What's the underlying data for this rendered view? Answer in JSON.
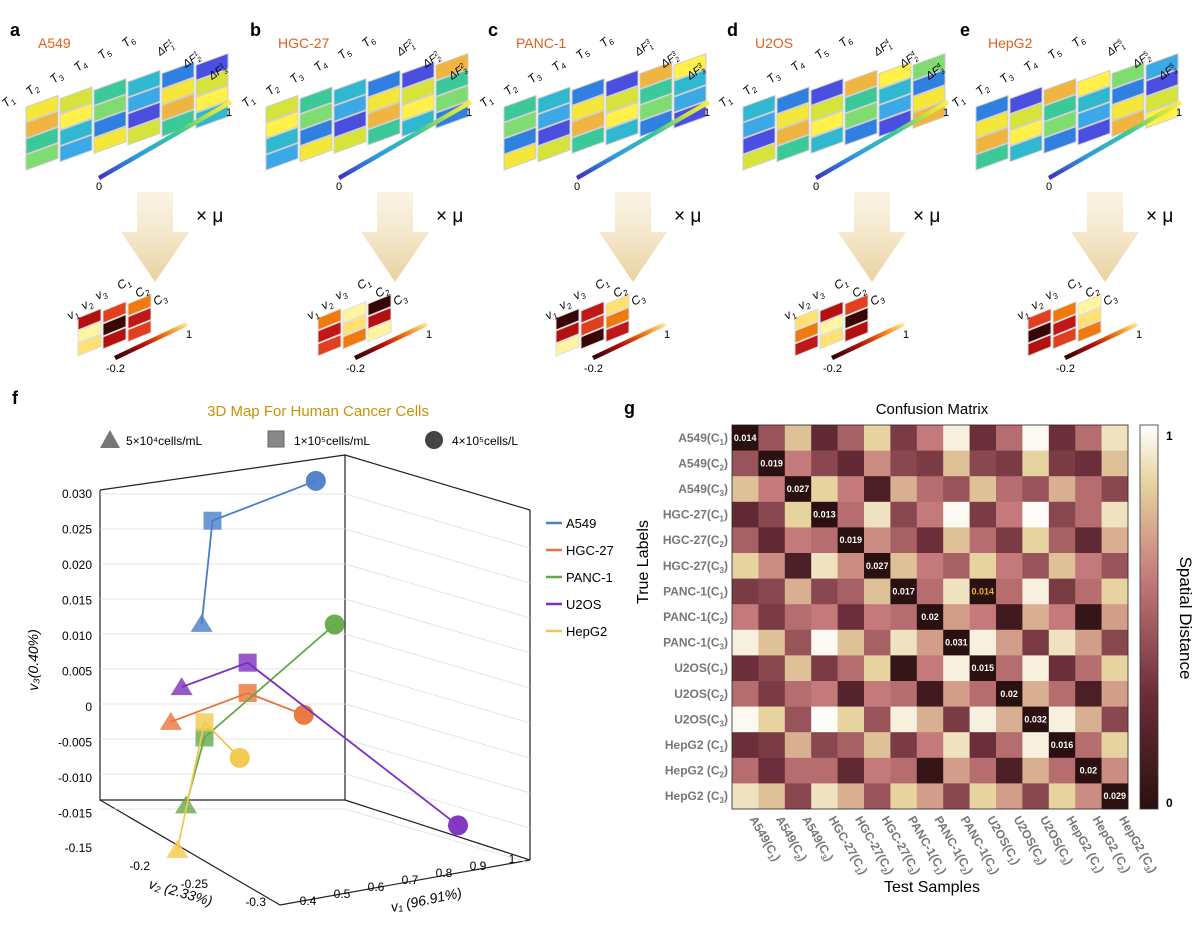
{
  "panels_top": [
    {
      "letter": "a",
      "cell_line": "A549",
      "row_labels": [
        "T1",
        "T2",
        "T3",
        "T4",
        "T5",
        "T6"
      ],
      "col_labels": [
        "ΔF1",
        "ΔF1",
        "ΔF1"
      ],
      "col_sup": "1"
    },
    {
      "letter": "b",
      "cell_line": "HGC-27",
      "row_labels": [
        "T1",
        "T2",
        "T3",
        "T4",
        "T5",
        "T6"
      ],
      "col_labels": [
        "ΔF2",
        "ΔF2",
        "ΔF2"
      ],
      "col_sup": "2"
    },
    {
      "letter": "c",
      "cell_line": "PANC-1",
      "row_labels": [
        "T1",
        "T2",
        "T3",
        "T4",
        "T5",
        "T6"
      ],
      "col_labels": [
        "ΔF3",
        "ΔF3",
        "ΔF3"
      ],
      "col_sup": "3"
    },
    {
      "letter": "d",
      "cell_line": "U2OS",
      "row_labels": [
        "T1",
        "T2",
        "T3",
        "T4",
        "T5",
        "T6"
      ],
      "col_labels": [
        "ΔF4",
        "ΔF4",
        "ΔF4"
      ],
      "col_sup": "4"
    },
    {
      "letter": "e",
      "cell_line": "HepG2",
      "row_labels": [
        "T1",
        "T2",
        "T3",
        "T4",
        "T5",
        "T6"
      ],
      "col_labels": [
        "ΔF5",
        "ΔF5",
        "ΔF5"
      ],
      "col_sup": "5"
    }
  ],
  "top_colorbar": {
    "min": "0",
    "max": "1"
  },
  "multiplier": "× μ",
  "bottom_heatmap": {
    "row_labels": [
      "v1",
      "v2",
      "v3"
    ],
    "col_labels": [
      "C1",
      "C2",
      "C3"
    ],
    "min": "-0.2",
    "max": "1"
  },
  "panel_f": {
    "letter": "f",
    "title": "3D Map For Human Cancer Cells",
    "marker_legend": [
      {
        "shape": "pyramid",
        "label": "5×10⁴cells/mL"
      },
      {
        "shape": "cube",
        "label": "1×10⁵cells/mL"
      },
      {
        "shape": "sphere",
        "label": "4×10⁵cells/L"
      }
    ],
    "xlabel": "v₁ (96.91%)",
    "ylabel": "v₂ (2.33%)",
    "zlabel": "v₃(0.40%)"
  },
  "panel_g_letter": "g",
  "colors": {
    "A549": "#4a7ec8",
    "HGC-27": "#e8733a",
    "PANC-1": "#63a94a",
    "U2OS": "#7b2fbf",
    "HepG2": "#f2c84b",
    "title_orange": "#c8920a",
    "cell_label": "#e0601a"
  },
  "chart_data": [
    {
      "type": "scatter",
      "title": "3D Map For Human Cancer Cells",
      "projection": "3d",
      "xlabel": "v₁ (96.91%)",
      "ylabel": "v₂ (2.33%)",
      "zlabel": "v₃(0.40%)",
      "xlim": [
        0.4,
        1.0
      ],
      "ylim": [
        -0.3,
        -0.15
      ],
      "zlim": [
        -0.017,
        0.033
      ],
      "x_ticks": [
        "0.4",
        "0.5",
        "0.6",
        "0.7",
        "0.8",
        "0.9",
        "1"
      ],
      "y_ticks": [
        "-0.15",
        "-0.2",
        "-0.25",
        "-0.3"
      ],
      "z_ticks": [
        "0.030",
        "0.025",
        "0.020",
        "0.015",
        "0.010",
        "0.005",
        "0",
        "-0.005",
        "-0.010",
        "-0.015"
      ],
      "legend": [
        "A549",
        "HGC-27",
        "PANC-1",
        "U2OS",
        "HepG2"
      ],
      "legend_position": "right",
      "series": [
        {
          "name": "A549",
          "points": [
            {
              "x": 0.5,
              "y": -0.15,
              "z": 0.011
            },
            {
              "x": 0.55,
              "y": -0.2,
              "z": 0.026
            },
            {
              "x": 0.75,
              "y": -0.25,
              "z": 0.033
            }
          ]
        },
        {
          "name": "HGC-27",
          "points": [
            {
              "x": 0.45,
              "y": -0.15,
              "z": -0.002
            },
            {
              "x": 0.62,
              "y": -0.22,
              "z": 0.004
            },
            {
              "x": 0.75,
              "y": -0.28,
              "z": 0.003
            }
          ]
        },
        {
          "name": "PANC-1",
          "points": [
            {
              "x": 0.52,
              "y": -0.22,
              "z": -0.011
            },
            {
              "x": 0.55,
              "y": -0.22,
              "z": -0.002
            },
            {
              "x": 0.8,
              "y": -0.28,
              "z": 0.015
            }
          ]
        },
        {
          "name": "U2OS",
          "points": [
            {
              "x": 0.5,
              "y": -0.2,
              "z": 0.004
            },
            {
              "x": 0.62,
              "y": -0.22,
              "z": 0.008
            },
            {
              "x": 1.0,
              "y": -0.28,
              "z": -0.011
            }
          ]
        },
        {
          "name": "HepG2",
          "points": [
            {
              "x": 0.48,
              "y": -0.18,
              "z": -0.018
            },
            {
              "x": 0.55,
              "y": -0.22,
              "z": 0.0
            },
            {
              "x": 0.62,
              "y": -0.24,
              "z": -0.004
            }
          ]
        }
      ]
    },
    {
      "type": "heatmap",
      "title": "Confusion Matrix",
      "xlabel": "Test Samples",
      "ylabel": "True Labels",
      "colorbar_label": "Spatial Distance",
      "colorbar_ticks": [
        "1",
        "0"
      ],
      "labels": [
        "A549(C1)",
        "A549(C2)",
        "A549(C3)",
        "HGC-27(C1)",
        "HGC-27(C2)",
        "HGC-27(C3)",
        "PANC-1(C1)",
        "PANC-1(C2)",
        "PANC-1(C3)",
        "U2OS(C1)",
        "U2OS(C2)",
        "U2OS(C3)",
        "HepG2 (C1)",
        "HepG2 (C2)",
        "HepG2 (C3)"
      ],
      "diag_labels": [
        "0.014",
        "0.019",
        "0.027",
        "0.013",
        "0.019",
        "0.027",
        "0.017",
        "0.02",
        "0.031",
        "0.015",
        "0.02",
        "0.032",
        "0.016",
        "0.02",
        "0.029"
      ],
      "extra_labels": [
        {
          "row": 6,
          "col": 9,
          "text": "0.014"
        }
      ],
      "matrix": [
        [
          0.0,
          0.45,
          0.8,
          0.25,
          0.5,
          0.85,
          0.35,
          0.6,
          0.95,
          0.3,
          0.55,
          0.98,
          0.3,
          0.55,
          0.9
        ],
        [
          0.45,
          0.0,
          0.6,
          0.4,
          0.25,
          0.65,
          0.4,
          0.35,
          0.8,
          0.4,
          0.35,
          0.85,
          0.35,
          0.3,
          0.8
        ],
        [
          0.8,
          0.6,
          0.0,
          0.85,
          0.6,
          0.15,
          0.75,
          0.55,
          0.45,
          0.8,
          0.55,
          0.45,
          0.75,
          0.55,
          0.4
        ],
        [
          0.25,
          0.4,
          0.85,
          0.0,
          0.55,
          0.9,
          0.4,
          0.6,
          0.98,
          0.35,
          0.6,
          0.99,
          0.4,
          0.55,
          0.9
        ],
        [
          0.5,
          0.25,
          0.6,
          0.55,
          0.0,
          0.65,
          0.5,
          0.3,
          0.8,
          0.55,
          0.35,
          0.85,
          0.5,
          0.25,
          0.75
        ],
        [
          0.85,
          0.65,
          0.15,
          0.9,
          0.65,
          0.0,
          0.8,
          0.6,
          0.5,
          0.85,
          0.6,
          0.45,
          0.8,
          0.6,
          0.45
        ],
        [
          0.35,
          0.4,
          0.75,
          0.4,
          0.5,
          0.8,
          0.0,
          0.55,
          0.9,
          0.0,
          0.55,
          0.95,
          0.35,
          0.55,
          0.85
        ],
        [
          0.6,
          0.35,
          0.55,
          0.6,
          0.3,
          0.6,
          0.55,
          0.0,
          0.7,
          0.6,
          0.1,
          0.75,
          0.6,
          0.05,
          0.7
        ],
        [
          0.95,
          0.8,
          0.45,
          0.98,
          0.8,
          0.5,
          0.9,
          0.7,
          0.0,
          0.95,
          0.7,
          0.35,
          0.9,
          0.7,
          0.4
        ],
        [
          0.3,
          0.4,
          0.8,
          0.35,
          0.55,
          0.85,
          0.05,
          0.6,
          0.95,
          0.0,
          0.55,
          0.95,
          0.3,
          0.55,
          0.85
        ],
        [
          0.55,
          0.35,
          0.55,
          0.6,
          0.2,
          0.6,
          0.55,
          0.1,
          0.7,
          0.55,
          0.0,
          0.75,
          0.55,
          0.15,
          0.7
        ],
        [
          0.98,
          0.85,
          0.45,
          0.99,
          0.85,
          0.45,
          0.95,
          0.75,
          0.35,
          0.95,
          0.75,
          0.0,
          0.95,
          0.75,
          0.4
        ],
        [
          0.3,
          0.35,
          0.75,
          0.4,
          0.5,
          0.8,
          0.35,
          0.6,
          0.9,
          0.3,
          0.55,
          0.95,
          0.0,
          0.55,
          0.85
        ],
        [
          0.55,
          0.3,
          0.55,
          0.55,
          0.25,
          0.6,
          0.55,
          0.05,
          0.7,
          0.55,
          0.15,
          0.75,
          0.55,
          0.0,
          0.65
        ],
        [
          0.9,
          0.8,
          0.4,
          0.9,
          0.75,
          0.45,
          0.85,
          0.7,
          0.4,
          0.85,
          0.7,
          0.4,
          0.85,
          0.65,
          0.0
        ]
      ]
    }
  ]
}
